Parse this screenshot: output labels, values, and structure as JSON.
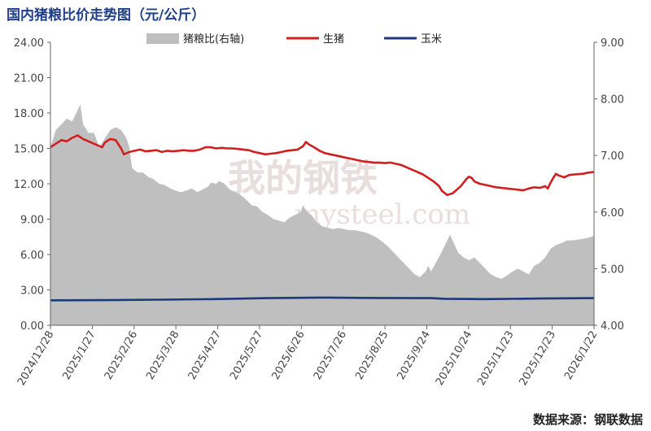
{
  "title": "国内猪粮比价走势图（元/公斤）",
  "source": "数据来源：钢联数据",
  "watermark": "我的钢铁 mysteel.com",
  "legend_labels": [
    "猪粮比(右轴)",
    "生猪",
    "玉米"
  ],
  "chart_data": {
    "type": "line",
    "x_ticks": [
      "2024/12/28",
      "2025/1/27",
      "2025/2/26",
      "2025/3/28",
      "2025/4/27",
      "2025/5/27",
      "2025/6/26",
      "2025/7/26",
      "2025/8/25",
      "2025/9/24",
      "2025/10/24",
      "2025/11/23",
      "2025/12/23",
      "2026/1/22"
    ],
    "y_left_ticks": [
      "0.00",
      "3.00",
      "6.00",
      "9.00",
      "12.00",
      "15.00",
      "18.00",
      "21.00",
      "24.00"
    ],
    "y_right_ticks": [
      "4.00",
      "5.00",
      "6.00",
      "7.00",
      "8.00",
      "9.00"
    ],
    "y_left_range": [
      0,
      24
    ],
    "y_right_range": [
      4,
      9
    ],
    "x_range_days": [
      0,
      400
    ],
    "series": [
      {
        "name": "猪粮比(右轴)",
        "type": "area",
        "axis": "right",
        "color": "#bfbfbf",
        "points": [
          [
            0,
            7.15
          ],
          [
            4,
            7.45
          ],
          [
            8,
            7.55
          ],
          [
            12,
            7.65
          ],
          [
            16,
            7.6
          ],
          [
            20,
            7.8
          ],
          [
            22,
            7.9
          ],
          [
            24,
            7.55
          ],
          [
            28,
            7.4
          ],
          [
            32,
            7.4
          ],
          [
            36,
            7.15
          ],
          [
            40,
            7.3
          ],
          [
            44,
            7.45
          ],
          [
            48,
            7.5
          ],
          [
            52,
            7.45
          ],
          [
            56,
            7.3
          ],
          [
            58,
            7.15
          ],
          [
            60,
            6.78
          ],
          [
            64,
            6.7
          ],
          [
            68,
            6.7
          ],
          [
            72,
            6.62
          ],
          [
            76,
            6.58
          ],
          [
            80,
            6.5
          ],
          [
            84,
            6.48
          ],
          [
            88,
            6.42
          ],
          [
            92,
            6.38
          ],
          [
            96,
            6.35
          ],
          [
            100,
            6.38
          ],
          [
            104,
            6.42
          ],
          [
            108,
            6.35
          ],
          [
            112,
            6.4
          ],
          [
            116,
            6.45
          ],
          [
            118,
            6.52
          ],
          [
            122,
            6.5
          ],
          [
            124,
            6.55
          ],
          [
            128,
            6.5
          ],
          [
            132,
            6.4
          ],
          [
            136,
            6.35
          ],
          [
            140,
            6.3
          ],
          [
            144,
            6.22
          ],
          [
            148,
            6.12
          ],
          [
            152,
            6.1
          ],
          [
            156,
            6.0
          ],
          [
            160,
            5.95
          ],
          [
            164,
            5.88
          ],
          [
            168,
            5.85
          ],
          [
            172,
            5.82
          ],
          [
            176,
            5.9
          ],
          [
            180,
            5.95
          ],
          [
            184,
            6.0
          ],
          [
            186,
            6.12
          ],
          [
            188,
            6.02
          ],
          [
            192,
            5.95
          ],
          [
            196,
            5.82
          ],
          [
            200,
            5.75
          ],
          [
            204,
            5.72
          ],
          [
            208,
            5.7
          ],
          [
            212,
            5.72
          ],
          [
            216,
            5.7
          ],
          [
            220,
            5.68
          ],
          [
            224,
            5.68
          ],
          [
            228,
            5.66
          ],
          [
            232,
            5.64
          ],
          [
            236,
            5.6
          ],
          [
            240,
            5.55
          ],
          [
            244,
            5.48
          ],
          [
            248,
            5.4
          ],
          [
            252,
            5.3
          ],
          [
            256,
            5.2
          ],
          [
            260,
            5.1
          ],
          [
            264,
            5.0
          ],
          [
            268,
            4.9
          ],
          [
            272,
            4.85
          ],
          [
            276,
            4.95
          ],
          [
            278,
            5.05
          ],
          [
            280,
            4.95
          ],
          [
            284,
            5.12
          ],
          [
            288,
            5.3
          ],
          [
            292,
            5.5
          ],
          [
            294,
            5.6
          ],
          [
            296,
            5.5
          ],
          [
            300,
            5.28
          ],
          [
            304,
            5.2
          ],
          [
            308,
            5.15
          ],
          [
            312,
            5.2
          ],
          [
            316,
            5.1
          ],
          [
            320,
            5.0
          ],
          [
            324,
            4.9
          ],
          [
            328,
            4.85
          ],
          [
            332,
            4.82
          ],
          [
            336,
            4.88
          ],
          [
            340,
            4.95
          ],
          [
            344,
            5.0
          ],
          [
            348,
            4.95
          ],
          [
            352,
            4.9
          ],
          [
            356,
            5.05
          ],
          [
            360,
            5.1
          ],
          [
            364,
            5.2
          ],
          [
            368,
            5.35
          ],
          [
            372,
            5.42
          ],
          [
            376,
            5.45
          ],
          [
            380,
            5.5
          ],
          [
            384,
            5.5
          ],
          [
            390,
            5.52
          ],
          [
            396,
            5.55
          ],
          [
            400,
            5.58
          ]
        ]
      },
      {
        "name": "生猪",
        "type": "line",
        "axis": "left",
        "color": "#d11f1f",
        "points": [
          [
            0,
            15.1
          ],
          [
            4,
            15.4
          ],
          [
            8,
            15.7
          ],
          [
            12,
            15.6
          ],
          [
            16,
            15.9
          ],
          [
            20,
            16.1
          ],
          [
            24,
            15.8
          ],
          [
            28,
            15.6
          ],
          [
            32,
            15.4
          ],
          [
            36,
            15.2
          ],
          [
            38,
            15.1
          ],
          [
            40,
            15.5
          ],
          [
            44,
            15.8
          ],
          [
            48,
            15.7
          ],
          [
            52,
            15.0
          ],
          [
            54,
            14.5
          ],
          [
            58,
            14.7
          ],
          [
            62,
            14.8
          ],
          [
            66,
            14.9
          ],
          [
            70,
            14.75
          ],
          [
            74,
            14.8
          ],
          [
            78,
            14.85
          ],
          [
            82,
            14.7
          ],
          [
            86,
            14.8
          ],
          [
            90,
            14.75
          ],
          [
            94,
            14.8
          ],
          [
            98,
            14.85
          ],
          [
            102,
            14.8
          ],
          [
            106,
            14.8
          ],
          [
            110,
            14.9
          ],
          [
            114,
            15.1
          ],
          [
            118,
            15.1
          ],
          [
            122,
            15.0
          ],
          [
            126,
            15.05
          ],
          [
            130,
            15.0
          ],
          [
            134,
            15.0
          ],
          [
            138,
            14.95
          ],
          [
            142,
            14.9
          ],
          [
            146,
            14.85
          ],
          [
            150,
            14.7
          ],
          [
            154,
            14.6
          ],
          [
            158,
            14.5
          ],
          [
            162,
            14.55
          ],
          [
            166,
            14.6
          ],
          [
            170,
            14.7
          ],
          [
            174,
            14.8
          ],
          [
            178,
            14.85
          ],
          [
            182,
            14.9
          ],
          [
            186,
            15.2
          ],
          [
            188,
            15.55
          ],
          [
            190,
            15.35
          ],
          [
            194,
            15.1
          ],
          [
            198,
            14.8
          ],
          [
            202,
            14.6
          ],
          [
            206,
            14.5
          ],
          [
            210,
            14.4
          ],
          [
            214,
            14.3
          ],
          [
            218,
            14.2
          ],
          [
            222,
            14.1
          ],
          [
            226,
            14.0
          ],
          [
            230,
            13.9
          ],
          [
            234,
            13.85
          ],
          [
            238,
            13.8
          ],
          [
            242,
            13.8
          ],
          [
            246,
            13.75
          ],
          [
            250,
            13.8
          ],
          [
            254,
            13.7
          ],
          [
            258,
            13.6
          ],
          [
            262,
            13.4
          ],
          [
            266,
            13.2
          ],
          [
            270,
            13.0
          ],
          [
            274,
            12.8
          ],
          [
            278,
            12.5
          ],
          [
            282,
            12.2
          ],
          [
            286,
            11.8
          ],
          [
            288,
            11.4
          ],
          [
            292,
            11.05
          ],
          [
            296,
            11.2
          ],
          [
            300,
            11.6
          ],
          [
            302,
            11.8
          ],
          [
            304,
            12.1
          ],
          [
            306,
            12.4
          ],
          [
            308,
            12.6
          ],
          [
            310,
            12.5
          ],
          [
            312,
            12.2
          ],
          [
            316,
            12.0
          ],
          [
            320,
            11.9
          ],
          [
            324,
            11.8
          ],
          [
            328,
            11.7
          ],
          [
            332,
            11.65
          ],
          [
            336,
            11.6
          ],
          [
            340,
            11.55
          ],
          [
            344,
            11.5
          ],
          [
            348,
            11.45
          ],
          [
            352,
            11.6
          ],
          [
            356,
            11.7
          ],
          [
            360,
            11.65
          ],
          [
            364,
            11.8
          ],
          [
            366,
            11.6
          ],
          [
            368,
            12.1
          ],
          [
            370,
            12.5
          ],
          [
            372,
            12.85
          ],
          [
            374,
            12.7
          ],
          [
            378,
            12.55
          ],
          [
            382,
            12.75
          ],
          [
            386,
            12.8
          ],
          [
            392,
            12.85
          ],
          [
            396,
            12.95
          ],
          [
            400,
            13.0
          ]
        ]
      },
      {
        "name": "玉米",
        "type": "line",
        "axis": "left",
        "color": "#1b3a7a",
        "points": [
          [
            0,
            2.12
          ],
          [
            40,
            2.13
          ],
          [
            80,
            2.17
          ],
          [
            120,
            2.22
          ],
          [
            160,
            2.3
          ],
          [
            200,
            2.35
          ],
          [
            240,
            2.32
          ],
          [
            280,
            2.3
          ],
          [
            290,
            2.25
          ],
          [
            320,
            2.22
          ],
          [
            360,
            2.27
          ],
          [
            400,
            2.3
          ]
        ]
      }
    ],
    "grid": false,
    "legend_position": "top"
  }
}
